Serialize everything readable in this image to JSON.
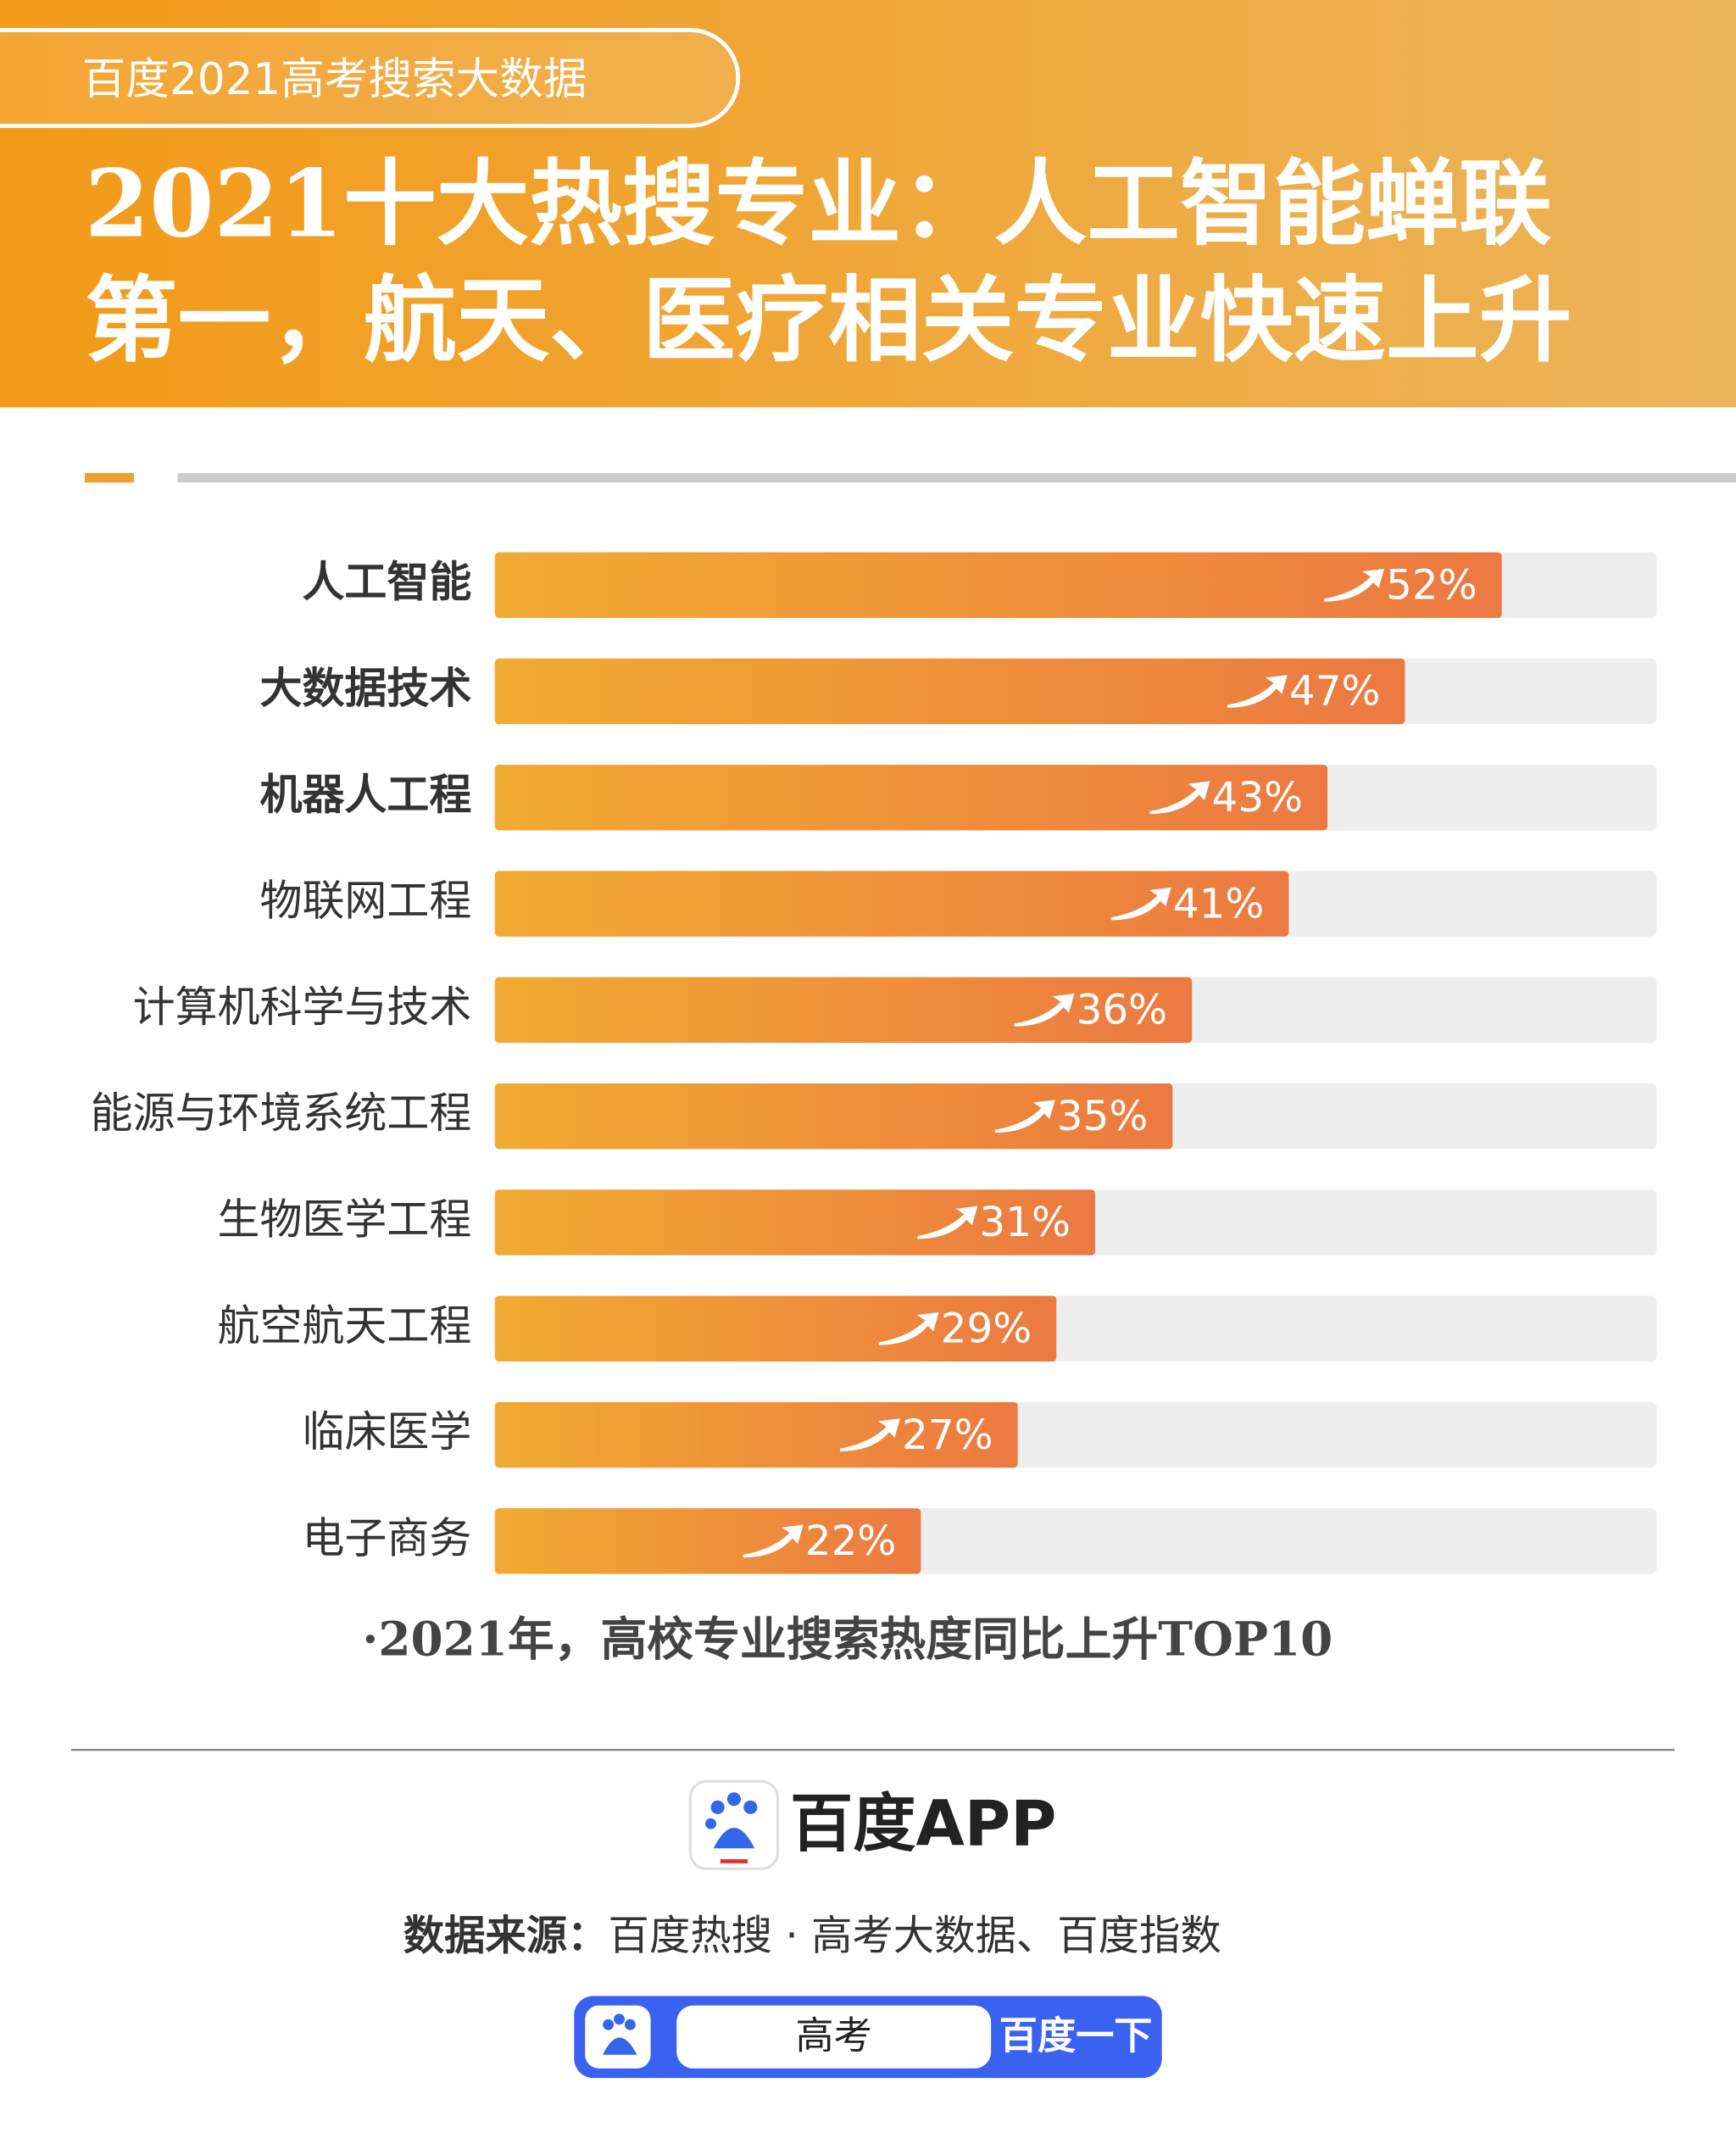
{
  "header": {
    "tag": "百度2021高考搜索大数据",
    "title": [
      "2021十大热搜专业：人工智能蝉联",
      "第一，航天、医疗相关专业快速上升"
    ]
  },
  "chart_data": {
    "type": "bar",
    "orientation": "horizontal",
    "categories": [
      "人工智能",
      "大数据技术",
      "机器人工程",
      "物联网工程",
      "计算机科学与技术",
      "能源与环境系统工程",
      "生物医学工程",
      "航空航天工程",
      "临床医学",
      "电子商务"
    ],
    "values": [
      52,
      47,
      43,
      41,
      36,
      35,
      31,
      29,
      27,
      22
    ],
    "value_labels": [
      "52%",
      "47%",
      "43%",
      "41%",
      "36%",
      "35%",
      "31%",
      "29%",
      "27%",
      "22%"
    ],
    "xlim": [
      0,
      60
    ],
    "color": [
      "#f1ab31",
      "#ec7942"
    ],
    "track_color": "#eeeeee",
    "note": "·2021年，高校专业搜索热度同比上升TOP10"
  },
  "footer": {
    "brand": "百度APP",
    "source_label": "数据来源：",
    "source": "百度热搜 · 高考大数据、百度指数",
    "search_query": "高考",
    "search_button": "百度一下"
  }
}
